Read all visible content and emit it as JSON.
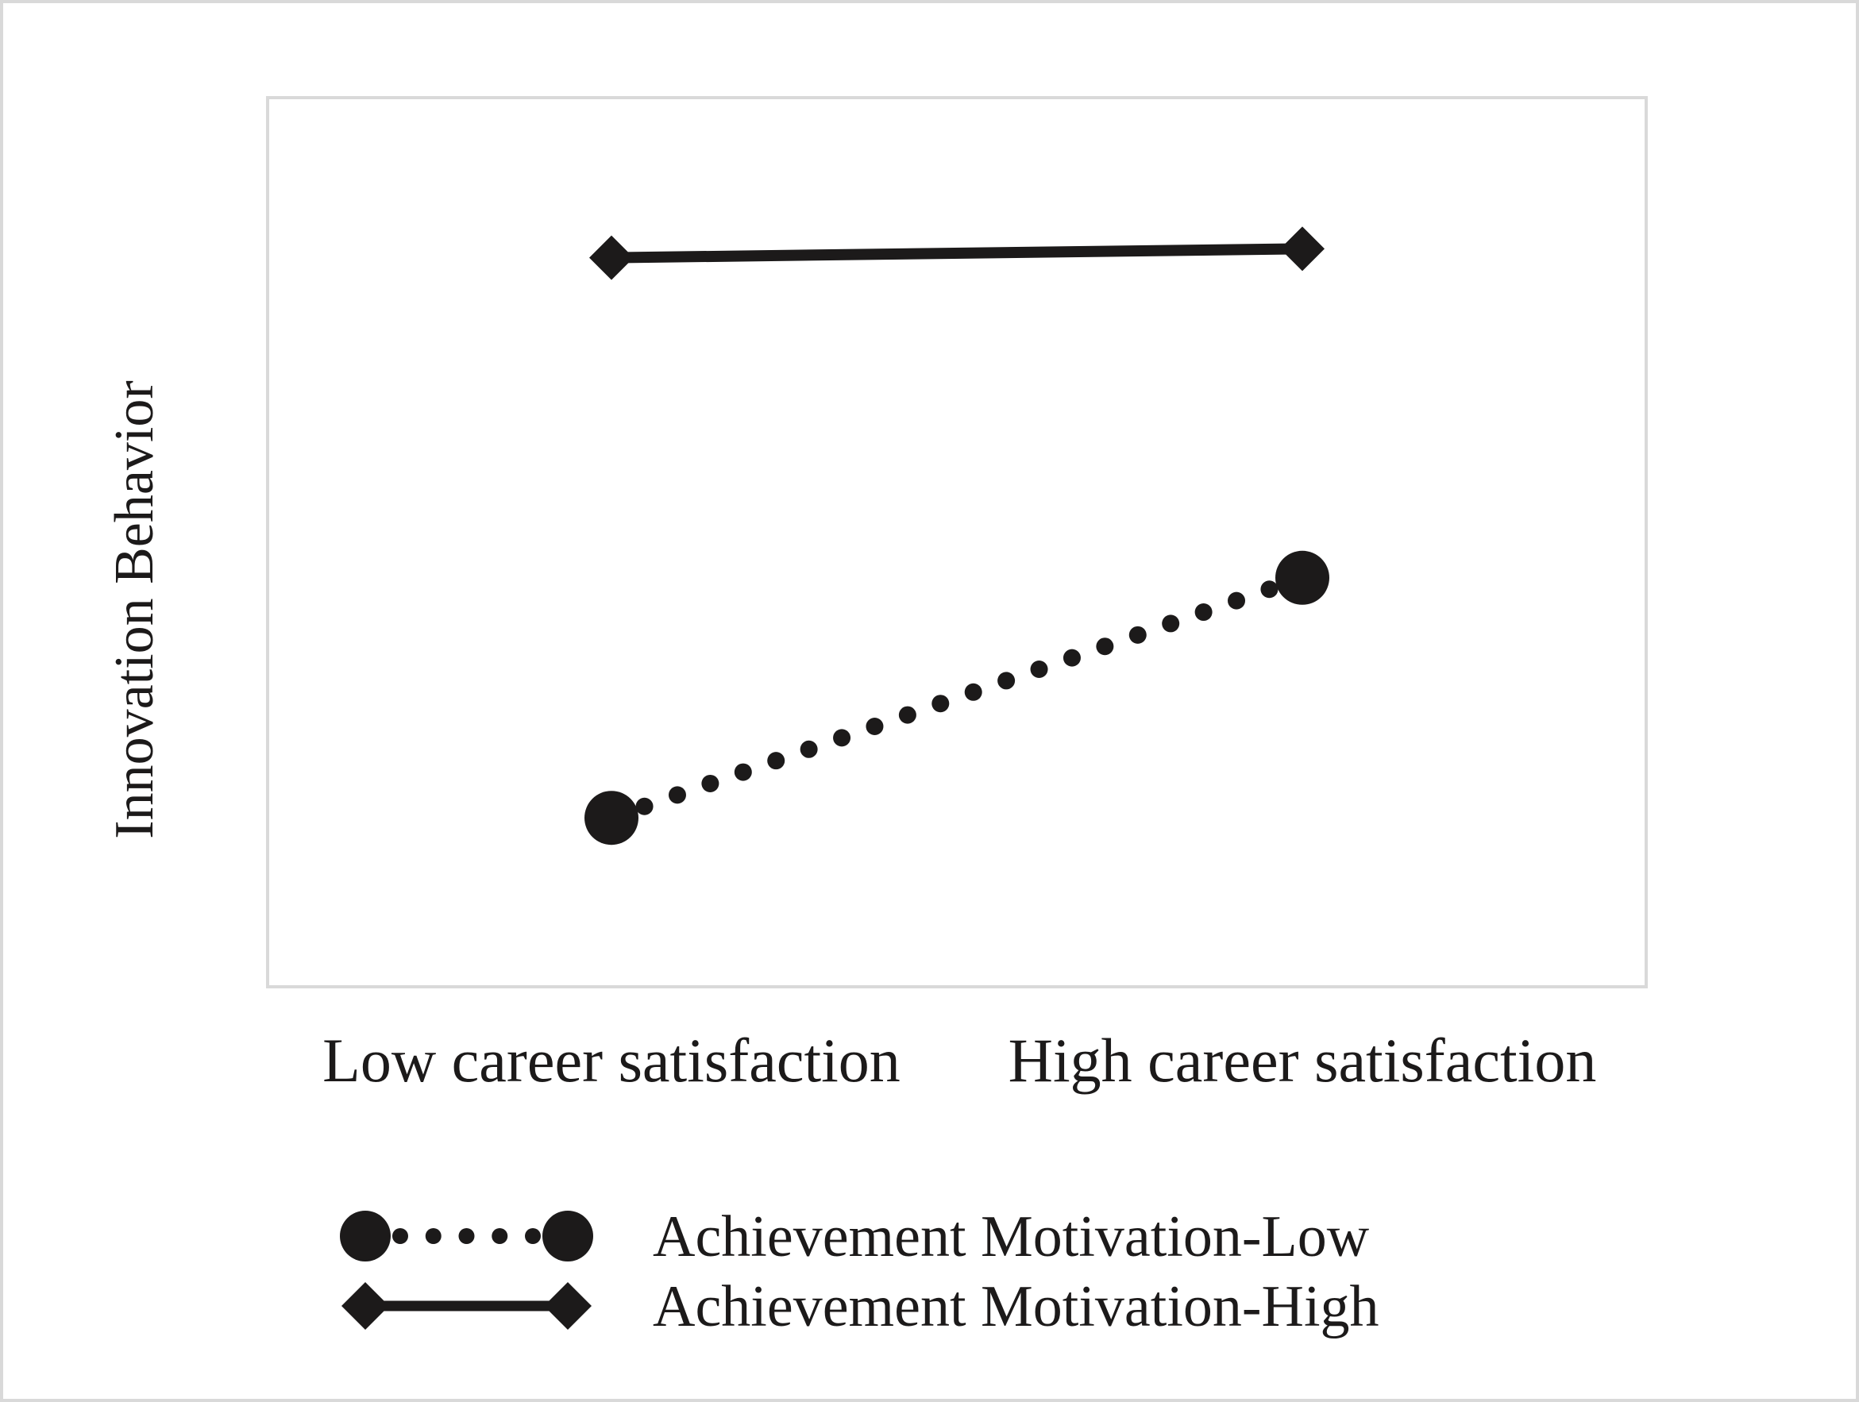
{
  "chart_data": {
    "type": "line",
    "title": "",
    "ylabel": "Innovation Behavior",
    "xlabel": "",
    "categories": [
      "Low career satisfaction",
      "High career satisfaction"
    ],
    "ylim": [
      0,
      100
    ],
    "grid": false,
    "legend_position": "bottom",
    "series": [
      {
        "name": "Achievement Motivation-Low",
        "values": [
          19,
          46
        ],
        "line_style": "dotted",
        "marker": "circle",
        "color": "#1c1a1a"
      },
      {
        "name": "Achievement Motivation-High",
        "values": [
          82,
          83
        ],
        "line_style": "solid",
        "marker": "diamond",
        "color": "#1c1a1a"
      }
    ]
  },
  "colors": {
    "ink": "#1c1a1a",
    "frame": "#d9d9d9",
    "background": "#ffffff"
  }
}
